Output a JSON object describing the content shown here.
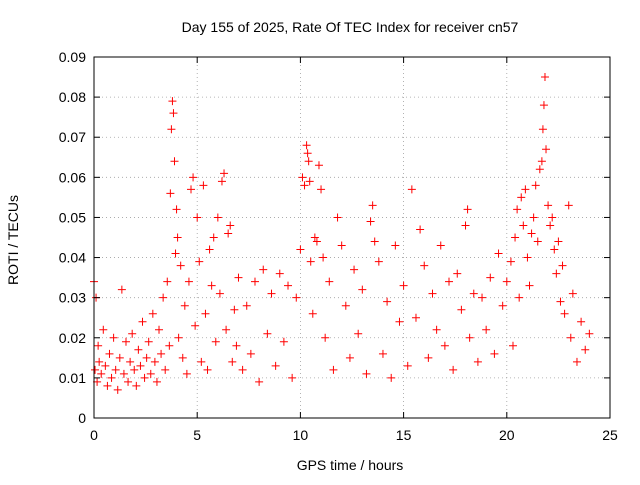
{
  "chart_data": {
    "type": "scatter",
    "title": "Day 155 of 2025, Rate Of TEC Index for receiver cn57",
    "xlabel": "GPS time / hours",
    "ylabel": "ROTI / TECUs",
    "xlim": [
      0,
      25
    ],
    "ylim": [
      0,
      0.09
    ],
    "xticks": [
      0,
      5,
      10,
      15,
      20,
      25
    ],
    "xtick_labels": [
      "0",
      "5",
      "10",
      "15",
      "20",
      "25"
    ],
    "yticks": [
      0,
      0.01,
      0.02,
      0.03,
      0.04,
      0.05,
      0.06,
      0.07,
      0.08,
      0.09
    ],
    "ytick_labels": [
      "0",
      "0.01",
      "0.02",
      "0.03",
      "0.04",
      "0.05",
      "0.06",
      "0.07",
      "0.08",
      "0.09"
    ],
    "grid": true,
    "legend": "none",
    "marker": "+",
    "color": "#ff0000",
    "points": [
      [
        0.0,
        0.034
      ],
      [
        0.05,
        0.012
      ],
      [
        0.1,
        0.03
      ],
      [
        0.15,
        0.009
      ],
      [
        0.2,
        0.018
      ],
      [
        0.25,
        0.014
      ],
      [
        0.35,
        0.011
      ],
      [
        0.45,
        0.022
      ],
      [
        0.55,
        0.013
      ],
      [
        0.65,
        0.008
      ],
      [
        0.75,
        0.016
      ],
      [
        0.85,
        0.01
      ],
      [
        0.95,
        0.02
      ],
      [
        1.05,
        0.012
      ],
      [
        1.15,
        0.007
      ],
      [
        1.25,
        0.015
      ],
      [
        1.35,
        0.032
      ],
      [
        1.45,
        0.011
      ],
      [
        1.55,
        0.019
      ],
      [
        1.65,
        0.009
      ],
      [
        1.75,
        0.014
      ],
      [
        1.85,
        0.021
      ],
      [
        1.95,
        0.012
      ],
      [
        2.05,
        0.008
      ],
      [
        2.15,
        0.017
      ],
      [
        2.25,
        0.013
      ],
      [
        2.35,
        0.024
      ],
      [
        2.45,
        0.01
      ],
      [
        2.55,
        0.015
      ],
      [
        2.65,
        0.019
      ],
      [
        2.75,
        0.011
      ],
      [
        2.85,
        0.026
      ],
      [
        2.95,
        0.014
      ],
      [
        3.05,
        0.009
      ],
      [
        3.15,
        0.022
      ],
      [
        3.25,
        0.016
      ],
      [
        3.35,
        0.03
      ],
      [
        3.45,
        0.012
      ],
      [
        3.55,
        0.034
      ],
      [
        3.65,
        0.018
      ],
      [
        3.7,
        0.056
      ],
      [
        3.75,
        0.072
      ],
      [
        3.8,
        0.079
      ],
      [
        3.85,
        0.076
      ],
      [
        3.9,
        0.064
      ],
      [
        3.95,
        0.041
      ],
      [
        4.0,
        0.052
      ],
      [
        4.05,
        0.045
      ],
      [
        4.1,
        0.02
      ],
      [
        4.2,
        0.038
      ],
      [
        4.3,
        0.015
      ],
      [
        4.4,
        0.028
      ],
      [
        4.5,
        0.011
      ],
      [
        4.6,
        0.034
      ],
      [
        4.7,
        0.057
      ],
      [
        4.8,
        0.06
      ],
      [
        4.9,
        0.023
      ],
      [
        5.0,
        0.05
      ],
      [
        5.1,
        0.039
      ],
      [
        5.2,
        0.014
      ],
      [
        5.3,
        0.058
      ],
      [
        5.4,
        0.026
      ],
      [
        5.5,
        0.012
      ],
      [
        5.6,
        0.042
      ],
      [
        5.7,
        0.033
      ],
      [
        5.8,
        0.045
      ],
      [
        5.9,
        0.019
      ],
      [
        6.0,
        0.05
      ],
      [
        6.1,
        0.031
      ],
      [
        6.2,
        0.059
      ],
      [
        6.3,
        0.061
      ],
      [
        6.4,
        0.022
      ],
      [
        6.5,
        0.046
      ],
      [
        6.6,
        0.048
      ],
      [
        6.7,
        0.014
      ],
      [
        6.8,
        0.027
      ],
      [
        6.9,
        0.018
      ],
      [
        7.0,
        0.035
      ],
      [
        7.2,
        0.012
      ],
      [
        7.4,
        0.028
      ],
      [
        7.6,
        0.016
      ],
      [
        7.8,
        0.034
      ],
      [
        8.0,
        0.009
      ],
      [
        8.2,
        0.037
      ],
      [
        8.4,
        0.021
      ],
      [
        8.6,
        0.031
      ],
      [
        8.8,
        0.013
      ],
      [
        9.0,
        0.036
      ],
      [
        9.2,
        0.019
      ],
      [
        9.4,
        0.033
      ],
      [
        9.6,
        0.01
      ],
      [
        9.8,
        0.03
      ],
      [
        10.0,
        0.042
      ],
      [
        10.1,
        0.06
      ],
      [
        10.2,
        0.058
      ],
      [
        10.3,
        0.068
      ],
      [
        10.35,
        0.066
      ],
      [
        10.4,
        0.064
      ],
      [
        10.45,
        0.059
      ],
      [
        10.5,
        0.039
      ],
      [
        10.6,
        0.026
      ],
      [
        10.7,
        0.045
      ],
      [
        10.8,
        0.044
      ],
      [
        10.9,
        0.063
      ],
      [
        11.0,
        0.057
      ],
      [
        11.1,
        0.04
      ],
      [
        11.2,
        0.02
      ],
      [
        11.4,
        0.034
      ],
      [
        11.6,
        0.012
      ],
      [
        11.8,
        0.05
      ],
      [
        12.0,
        0.043
      ],
      [
        12.2,
        0.028
      ],
      [
        12.4,
        0.015
      ],
      [
        12.6,
        0.037
      ],
      [
        12.8,
        0.021
      ],
      [
        13.0,
        0.032
      ],
      [
        13.2,
        0.011
      ],
      [
        13.4,
        0.049
      ],
      [
        13.5,
        0.053
      ],
      [
        13.6,
        0.044
      ],
      [
        13.8,
        0.039
      ],
      [
        14.0,
        0.016
      ],
      [
        14.2,
        0.029
      ],
      [
        14.4,
        0.01
      ],
      [
        14.6,
        0.043
      ],
      [
        14.8,
        0.024
      ],
      [
        15.0,
        0.033
      ],
      [
        15.2,
        0.013
      ],
      [
        15.4,
        0.057
      ],
      [
        15.6,
        0.025
      ],
      [
        15.8,
        0.047
      ],
      [
        16.0,
        0.038
      ],
      [
        16.2,
        0.015
      ],
      [
        16.4,
        0.031
      ],
      [
        16.6,
        0.022
      ],
      [
        16.8,
        0.043
      ],
      [
        17.0,
        0.018
      ],
      [
        17.2,
        0.034
      ],
      [
        17.4,
        0.012
      ],
      [
        17.6,
        0.036
      ],
      [
        17.8,
        0.027
      ],
      [
        18.0,
        0.048
      ],
      [
        18.1,
        0.052
      ],
      [
        18.2,
        0.02
      ],
      [
        18.4,
        0.031
      ],
      [
        18.6,
        0.014
      ],
      [
        18.8,
        0.03
      ],
      [
        19.0,
        0.022
      ],
      [
        19.2,
        0.035
      ],
      [
        19.4,
        0.016
      ],
      [
        19.6,
        0.041
      ],
      [
        19.8,
        0.028
      ],
      [
        20.0,
        0.034
      ],
      [
        20.2,
        0.039
      ],
      [
        20.3,
        0.018
      ],
      [
        20.4,
        0.045
      ],
      [
        20.5,
        0.052
      ],
      [
        20.6,
        0.03
      ],
      [
        20.7,
        0.055
      ],
      [
        20.8,
        0.048
      ],
      [
        20.9,
        0.057
      ],
      [
        21.0,
        0.04
      ],
      [
        21.1,
        0.033
      ],
      [
        21.2,
        0.046
      ],
      [
        21.3,
        0.05
      ],
      [
        21.4,
        0.058
      ],
      [
        21.5,
        0.044
      ],
      [
        21.6,
        0.062
      ],
      [
        21.7,
        0.064
      ],
      [
        21.75,
        0.072
      ],
      [
        21.8,
        0.078
      ],
      [
        21.85,
        0.085
      ],
      [
        21.9,
        0.067
      ],
      [
        22.0,
        0.053
      ],
      [
        22.1,
        0.048
      ],
      [
        22.2,
        0.05
      ],
      [
        22.3,
        0.042
      ],
      [
        22.4,
        0.036
      ],
      [
        22.5,
        0.044
      ],
      [
        22.6,
        0.029
      ],
      [
        22.7,
        0.038
      ],
      [
        22.8,
        0.026
      ],
      [
        23.0,
        0.053
      ],
      [
        23.1,
        0.02
      ],
      [
        23.2,
        0.031
      ],
      [
        23.4,
        0.014
      ],
      [
        23.6,
        0.024
      ],
      [
        23.8,
        0.017
      ],
      [
        24.0,
        0.021
      ]
    ]
  }
}
